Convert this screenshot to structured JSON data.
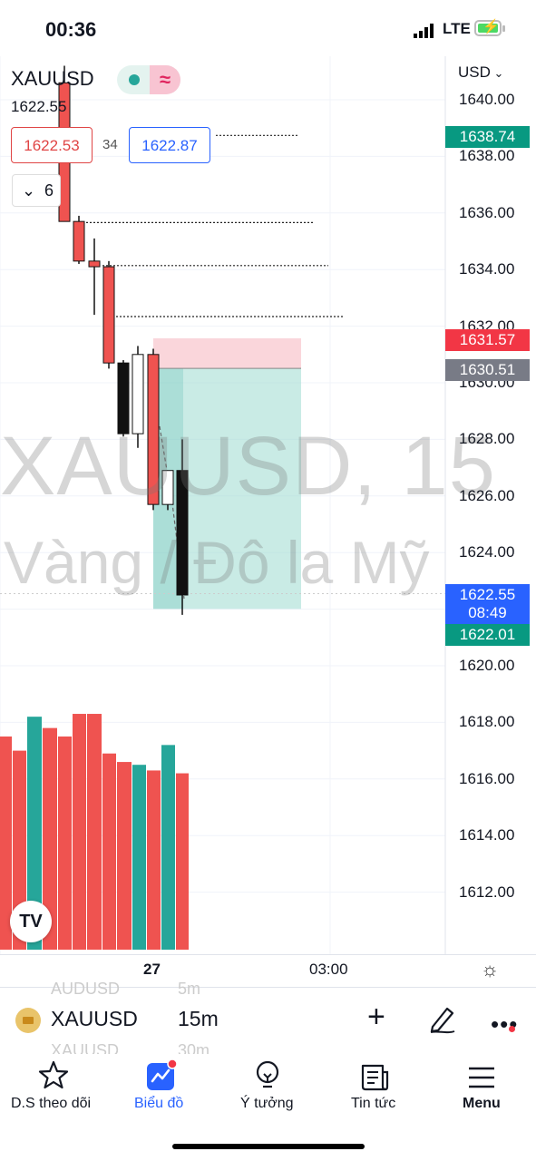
{
  "status_bar": {
    "time": "00:36",
    "network": "LTE"
  },
  "chart_header": {
    "symbol": "XAUUSD",
    "last_price": "1622.55",
    "sell_price": "1622.53",
    "spread": "34",
    "buy_price": "1622.87",
    "indicators_count": "6"
  },
  "watermark": {
    "line1": "XAUUSD, 15",
    "line2": "Vàng / Đô la Mỹ"
  },
  "price_axis": {
    "currency": "USD",
    "ticks": [
      "1640.00",
      "1638.00",
      "1636.00",
      "1634.00",
      "1632.00",
      "1630.00",
      "1628.00",
      "1626.00",
      "1624.00",
      "1620.00",
      "1618.00",
      "1616.00",
      "1614.00",
      "1612.00"
    ],
    "badges": {
      "take_profit": "1638.74",
      "stop": "1631.57",
      "entry": "1630.51",
      "current": "1622.55",
      "countdown": "08:49",
      "target": "1622.01"
    }
  },
  "time_axis": {
    "labels": [
      "27",
      "03:00"
    ]
  },
  "colors": {
    "up": "#26a69a",
    "down": "#ef5350",
    "accent": "#2962ff"
  },
  "chart_data": {
    "type": "candlestick",
    "ohlc": [
      {
        "o": 1640.6,
        "h": 1641.2,
        "l": 1635.7,
        "c": 1635.7
      },
      {
        "o": 1635.7,
        "h": 1635.9,
        "l": 1634.2,
        "c": 1634.3
      },
      {
        "o": 1634.3,
        "h": 1635.1,
        "l": 1632.4,
        "c": 1634.1
      },
      {
        "o": 1634.1,
        "h": 1634.3,
        "l": 1630.5,
        "c": 1630.7
      },
      {
        "o": 1630.7,
        "h": 1630.8,
        "l": 1628.1,
        "c": 1628.2
      },
      {
        "o": 1628.2,
        "h": 1631.3,
        "l": 1627.7,
        "c": 1631.0
      },
      {
        "o": 1631.0,
        "h": 1631.2,
        "l": 1625.5,
        "c": 1625.7
      },
      {
        "o": 1625.7,
        "h": 1626.9,
        "l": 1625.5,
        "c": 1626.9
      },
      {
        "o": 1626.9,
        "h": 1628.0,
        "l": 1621.8,
        "c": 1622.5
      }
    ],
    "volume": [
      1617.5,
      1617.0,
      1618.2,
      1617.8,
      1617.5,
      1618.3,
      1618.3,
      1616.9,
      1616.6,
      1616.5,
      1616.3,
      1617.2,
      1616.2
    ],
    "volume_colors": [
      "down",
      "down",
      "up",
      "down",
      "down",
      "down",
      "down",
      "down",
      "down",
      "up",
      "down",
      "up",
      "down"
    ],
    "position": {
      "entry": 1630.51,
      "stop": 1631.57,
      "target": 1622.01
    },
    "order_lines": [
      1638.74,
      1635.66,
      1634.14,
      1632.34
    ],
    "ylim": [
      1610.5,
      1641.5
    ]
  },
  "symbol_bar": {
    "symbol": "XAUUSD",
    "interval": "15m",
    "ghost_above_symbol": "AUDUSD",
    "ghost_above_interval": "5m",
    "ghost_below_symbol": "XAUUSD",
    "ghost_below_interval": "30m"
  },
  "tabs": [
    {
      "label": "D.S theo dõi"
    },
    {
      "label": "Biểu đồ"
    },
    {
      "label": "Ý tưởng"
    },
    {
      "label": "Tin tức"
    },
    {
      "label": "Menu"
    }
  ]
}
